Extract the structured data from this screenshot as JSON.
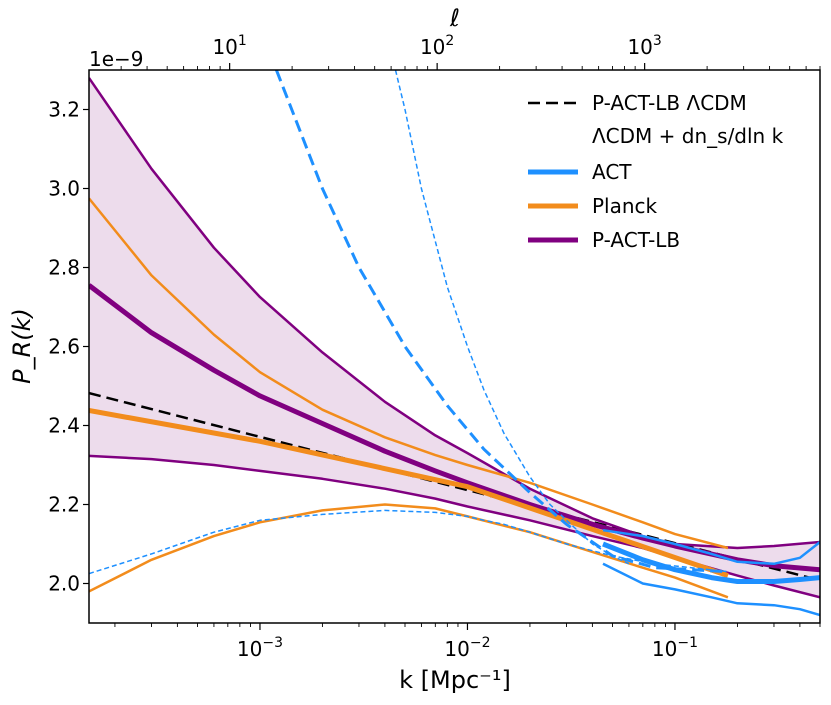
{
  "chart_data": {
    "type": "line",
    "xlabel": "k [Mpc⁻¹]",
    "ylabel": "P_R(k)",
    "top_xlabel": "ℓ",
    "offset_text": "1e−9",
    "x_scale": "log",
    "xlim": [
      0.00015,
      0.5
    ],
    "ylim": [
      1.9,
      3.3
    ],
    "x_ticks": [
      {
        "value": 0.001,
        "base": "10",
        "exp": "−3"
      },
      {
        "value": 0.01,
        "base": "10",
        "exp": "−2"
      },
      {
        "value": 0.1,
        "base": "10",
        "exp": "−1"
      }
    ],
    "y_ticks": [
      {
        "value": 2.0,
        "label": "2.0"
      },
      {
        "value": 2.2,
        "label": "2.2"
      },
      {
        "value": 2.4,
        "label": "2.4"
      },
      {
        "value": 2.6,
        "label": "2.6"
      },
      {
        "value": 2.8,
        "label": "2.8"
      },
      {
        "value": 3.0,
        "label": "3.0"
      },
      {
        "value": 3.2,
        "label": "3.2"
      }
    ],
    "top_ticks": [
      {
        "value": 10,
        "base": "10",
        "exp": "1"
      },
      {
        "value": 100,
        "base": "10",
        "exp": "2"
      },
      {
        "value": 1000,
        "base": "10",
        "exp": "3"
      }
    ],
    "ell_per_k": 14000,
    "colors": {
      "ACT": "#1e90ff",
      "Planck": "#f28c1c",
      "P-ACT-LB": "#800080",
      "band": "#eddcec",
      "reference": "#000000"
    },
    "legend": {
      "placement": "top-right",
      "entries": [
        {
          "label": "P-ACT-LB ΛCDM",
          "style": "dashed",
          "color": "#000000"
        },
        {
          "label": "ΛCDM  + dn_s/dln k",
          "style": "none",
          "color": "none"
        },
        {
          "label": "ACT",
          "style": "solid",
          "color": "#1e90ff"
        },
        {
          "label": "Planck",
          "style": "solid",
          "color": "#f28c1c"
        },
        {
          "label": "P-ACT-LB",
          "style": "solid",
          "color": "#800080"
        }
      ]
    },
    "series": [
      {
        "color": "#000000",
        "style": "dashed",
        "width": 2.5,
        "x": [
          0.00015,
          0.5
        ],
        "y": [
          2.482,
          2.008
        ]
      },
      {
        "color": "#800080",
        "style": "solid",
        "width": 5,
        "x": [
          0.00015,
          0.0003,
          0.0006,
          0.001,
          0.002,
          0.004,
          0.007,
          0.01,
          0.02,
          0.04,
          0.07,
          0.1,
          0.2,
          0.3,
          0.5
        ],
        "y": [
          2.755,
          2.635,
          2.54,
          2.475,
          2.405,
          2.335,
          2.285,
          2.255,
          2.2,
          2.15,
          2.115,
          2.095,
          2.06,
          2.045,
          2.035
        ]
      },
      {
        "color": "#800080",
        "style": "solid",
        "width": 2.5,
        "x": [
          0.00015,
          0.0003,
          0.0006,
          0.001,
          0.002,
          0.004,
          0.007,
          0.01,
          0.02,
          0.04,
          0.07,
          0.1,
          0.2,
          0.3,
          0.5
        ],
        "y": [
          3.28,
          3.05,
          2.85,
          2.725,
          2.585,
          2.46,
          2.375,
          2.33,
          2.24,
          2.165,
          2.12,
          2.1,
          2.09,
          2.095,
          2.105
        ]
      },
      {
        "color": "#800080",
        "style": "solid",
        "width": 2.5,
        "x": [
          0.00015,
          0.0003,
          0.0006,
          0.001,
          0.002,
          0.004,
          0.007,
          0.01,
          0.02,
          0.04,
          0.07,
          0.1,
          0.2,
          0.3,
          0.5
        ],
        "y": [
          2.323,
          2.315,
          2.3,
          2.285,
          2.265,
          2.24,
          2.215,
          2.195,
          2.16,
          2.12,
          2.09,
          2.065,
          2.02,
          1.995,
          1.965
        ]
      },
      {
        "color": "#f28c1c",
        "style": "solid",
        "width": 5,
        "x": [
          0.00015,
          0.001,
          0.01,
          0.18
        ],
        "y": [
          2.438,
          2.36,
          2.245,
          2.02
        ]
      },
      {
        "color": "#f28c1c",
        "style": "solid",
        "width": 2.5,
        "x": [
          0.00015,
          0.0003,
          0.0006,
          0.001,
          0.002,
          0.004,
          0.007,
          0.01,
          0.02,
          0.04,
          0.07,
          0.1,
          0.18
        ],
        "y": [
          2.975,
          2.78,
          2.63,
          2.535,
          2.44,
          2.37,
          2.325,
          2.3,
          2.255,
          2.2,
          2.155,
          2.125,
          2.09
        ]
      },
      {
        "color": "#f28c1c",
        "style": "solid",
        "width": 2.5,
        "x": [
          0.00015,
          0.0003,
          0.0006,
          0.001,
          0.002,
          0.004,
          0.007,
          0.01,
          0.02,
          0.04,
          0.07,
          0.1,
          0.18
        ],
        "y": [
          1.98,
          2.06,
          2.12,
          2.155,
          2.185,
          2.2,
          2.19,
          2.17,
          2.13,
          2.08,
          2.04,
          2.015,
          1.965
        ]
      },
      {
        "color": "#1e90ff",
        "style": "solid",
        "width": 5,
        "x": [
          0.045,
          0.07,
          0.1,
          0.15,
          0.2,
          0.3,
          0.4,
          0.5
        ],
        "y": [
          2.1,
          2.06,
          2.035,
          2.015,
          2.005,
          2.005,
          2.01,
          2.015
        ]
      },
      {
        "color": "#1e90ff",
        "style": "solid",
        "width": 2.5,
        "x": [
          0.045,
          0.07,
          0.1,
          0.15,
          0.2,
          0.3,
          0.4,
          0.5
        ],
        "y": [
          2.135,
          2.12,
          2.1,
          2.075,
          2.055,
          2.05,
          2.065,
          2.105
        ]
      },
      {
        "color": "#1e90ff",
        "style": "solid",
        "width": 2.5,
        "x": [
          0.045,
          0.07,
          0.1,
          0.15,
          0.2,
          0.3,
          0.4,
          0.5
        ],
        "y": [
          2.05,
          2.0,
          1.985,
          1.965,
          1.95,
          1.945,
          1.935,
          1.92
        ]
      },
      {
        "color": "#1e90ff",
        "style": "dashed",
        "width": 3,
        "x": [
          0.0012,
          0.002,
          0.003,
          0.005,
          0.008,
          0.012,
          0.02,
          0.03,
          0.05,
          0.08,
          0.12,
          0.18
        ],
        "y": [
          3.3,
          3.0,
          2.8,
          2.6,
          2.45,
          2.34,
          2.23,
          2.15,
          2.07,
          2.04,
          2.035,
          2.03
        ]
      },
      {
        "color": "#1e90ff",
        "style": "dashed-thin",
        "width": 1.5,
        "x": [
          0.00015,
          0.0003,
          0.0006,
          0.001,
          0.002,
          0.004,
          0.007,
          0.01,
          0.012,
          0.015,
          0.02,
          0.03,
          0.05,
          0.08,
          0.12,
          0.18
        ],
        "y": [
          2.025,
          2.075,
          2.13,
          2.16,
          2.175,
          2.185,
          2.18,
          2.17,
          2.16,
          2.15,
          2.13,
          2.1,
          2.07,
          2.05,
          2.04,
          2.03
        ]
      },
      {
        "color": "#1e90ff",
        "style": "dashed-thin",
        "width": 1.5,
        "x": [
          0.0045,
          0.005,
          0.006,
          0.008,
          0.01,
          0.012,
          0.015,
          0.02,
          0.025,
          0.03,
          0.04,
          0.05,
          0.06
        ],
        "y": [
          3.3,
          3.2,
          3.0,
          2.75,
          2.6,
          2.49,
          2.38,
          2.27,
          2.2,
          2.16,
          2.1,
          2.07,
          2.05
        ]
      }
    ]
  }
}
